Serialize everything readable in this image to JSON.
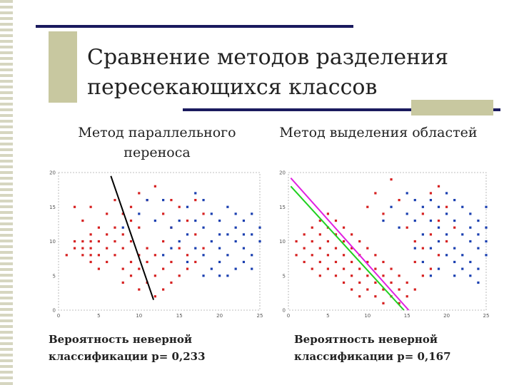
{
  "slide": {
    "title": "Сравнение методов разделения пересекающихся классов",
    "accent_color": "#1a1a5e",
    "deco_color": "#c8c8a0"
  },
  "panels": [
    {
      "subtitle": "Метод параллельного переноса",
      "caption": "Вероятность неверной классификации p= 0,233"
    },
    {
      "subtitle": "Метод выделения областей",
      "caption": "Вероятность неверной классификации p= 0,167"
    }
  ],
  "chart_data": [
    {
      "type": "scatter",
      "title": "Метод параллельного переноса",
      "xlim": [
        0,
        25
      ],
      "ylim": [
        0,
        20
      ],
      "xticks": [
        0,
        5,
        10,
        15,
        20,
        25
      ],
      "yticks": [
        0,
        5,
        10,
        15,
        20
      ],
      "grid": false,
      "series": [
        {
          "color": "#d62020",
          "points": [
            [
              1,
              8
            ],
            [
              2,
              9
            ],
            [
              2,
              10
            ],
            [
              3,
              8
            ],
            [
              3,
              9
            ],
            [
              3,
              10
            ],
            [
              4,
              7
            ],
            [
              4,
              8
            ],
            [
              4,
              9
            ],
            [
              4,
              10
            ],
            [
              4,
              11
            ],
            [
              5,
              6
            ],
            [
              5,
              8
            ],
            [
              5,
              10
            ],
            [
              5,
              12
            ],
            [
              6,
              7
            ],
            [
              6,
              9
            ],
            [
              6,
              11
            ],
            [
              6,
              14
            ],
            [
              7,
              8
            ],
            [
              7,
              10
            ],
            [
              7,
              12
            ],
            [
              7,
              16
            ],
            [
              8,
              4
            ],
            [
              8,
              6
            ],
            [
              8,
              9
            ],
            [
              8,
              11
            ],
            [
              8,
              14
            ],
            [
              9,
              5
            ],
            [
              9,
              7
            ],
            [
              9,
              10
            ],
            [
              9,
              13
            ],
            [
              9,
              15
            ],
            [
              10,
              3
            ],
            [
              10,
              6
            ],
            [
              10,
              8
            ],
            [
              10,
              12
            ],
            [
              10,
              17
            ],
            [
              11,
              4
            ],
            [
              11,
              7
            ],
            [
              11,
              9
            ],
            [
              11,
              16
            ],
            [
              12,
              2
            ],
            [
              12,
              5
            ],
            [
              12,
              8
            ],
            [
              12,
              18
            ],
            [
              13,
              3
            ],
            [
              13,
              6
            ],
            [
              13,
              10
            ],
            [
              13,
              14
            ],
            [
              14,
              4
            ],
            [
              14,
              7
            ],
            [
              14,
              12
            ],
            [
              14,
              16
            ],
            [
              15,
              5
            ],
            [
              15,
              9
            ],
            [
              15,
              15
            ],
            [
              16,
              6
            ],
            [
              16,
              8
            ],
            [
              16,
              13
            ],
            [
              17,
              7
            ],
            [
              17,
              11
            ],
            [
              17,
              16
            ],
            [
              18,
              9
            ],
            [
              18,
              14
            ],
            [
              4,
              15
            ],
            [
              3,
              13
            ],
            [
              2,
              15
            ]
          ]
        },
        {
          "color": "#1a3fb0",
          "points": [
            [
              8,
              12
            ],
            [
              10,
              14
            ],
            [
              11,
              16
            ],
            [
              12,
              13
            ],
            [
              13,
              16
            ],
            [
              14,
              12
            ],
            [
              15,
              10
            ],
            [
              15,
              13
            ],
            [
              16,
              11
            ],
            [
              16,
              15
            ],
            [
              17,
              9
            ],
            [
              17,
              13
            ],
            [
              17,
              17
            ],
            [
              18,
              8
            ],
            [
              18,
              12
            ],
            [
              18,
              16
            ],
            [
              19,
              10
            ],
            [
              19,
              14
            ],
            [
              20,
              7
            ],
            [
              20,
              9
            ],
            [
              20,
              13
            ],
            [
              21,
              8
            ],
            [
              21,
              11
            ],
            [
              21,
              15
            ],
            [
              22,
              6
            ],
            [
              22,
              10
            ],
            [
              22,
              12
            ],
            [
              23,
              7
            ],
            [
              23,
              9
            ],
            [
              23,
              13
            ],
            [
              24,
              8
            ],
            [
              24,
              11
            ],
            [
              24,
              14
            ],
            [
              25,
              10
            ],
            [
              25,
              12
            ],
            [
              19,
              6
            ],
            [
              20,
              11
            ],
            [
              22,
              14
            ],
            [
              21,
              5
            ],
            [
              23,
              11
            ],
            [
              24,
              6
            ],
            [
              14,
              9
            ],
            [
              13,
              8
            ],
            [
              16,
              7
            ],
            [
              18,
              5
            ],
            [
              20,
              5
            ]
          ]
        }
      ],
      "lines": [
        {
          "color": "#000000",
          "x": [
            6.5,
            11.8
          ],
          "y": [
            19.5,
            1.5
          ]
        }
      ]
    },
    {
      "type": "scatter",
      "title": "Метод выделения областей",
      "xlim": [
        0,
        25
      ],
      "ylim": [
        0,
        20
      ],
      "xticks": [
        0,
        5,
        10,
        15,
        20,
        25
      ],
      "yticks": [
        0,
        5,
        10,
        15,
        20
      ],
      "grid": false,
      "series": [
        {
          "color": "#d62020",
          "points": [
            [
              1,
              8
            ],
            [
              1,
              10
            ],
            [
              2,
              7
            ],
            [
              2,
              9
            ],
            [
              2,
              11
            ],
            [
              3,
              6
            ],
            [
              3,
              8
            ],
            [
              3,
              10
            ],
            [
              3,
              12
            ],
            [
              4,
              5
            ],
            [
              4,
              7
            ],
            [
              4,
              9
            ],
            [
              4,
              11
            ],
            [
              4,
              13
            ],
            [
              5,
              6
            ],
            [
              5,
              8
            ],
            [
              5,
              10
            ],
            [
              5,
              12
            ],
            [
              5,
              14
            ],
            [
              6,
              5
            ],
            [
              6,
              7
            ],
            [
              6,
              9
            ],
            [
              6,
              11
            ],
            [
              6,
              13
            ],
            [
              7,
              4
            ],
            [
              7,
              6
            ],
            [
              7,
              8
            ],
            [
              7,
              10
            ],
            [
              7,
              12
            ],
            [
              8,
              3
            ],
            [
              8,
              5
            ],
            [
              8,
              7
            ],
            [
              8,
              9
            ],
            [
              8,
              11
            ],
            [
              9,
              2
            ],
            [
              9,
              4
            ],
            [
              9,
              6
            ],
            [
              9,
              8
            ],
            [
              9,
              10
            ],
            [
              10,
              3
            ],
            [
              10,
              5
            ],
            [
              10,
              7
            ],
            [
              10,
              9
            ],
            [
              11,
              2
            ],
            [
              11,
              4
            ],
            [
              11,
              6
            ],
            [
              11,
              8
            ],
            [
              12,
              1
            ],
            [
              12,
              3
            ],
            [
              12,
              5
            ],
            [
              12,
              7
            ],
            [
              13,
              2
            ],
            [
              13,
              4
            ],
            [
              13,
              6
            ],
            [
              14,
              1
            ],
            [
              14,
              3
            ],
            [
              14,
              5
            ],
            [
              15,
              2
            ],
            [
              15,
              4
            ],
            [
              16,
              3
            ],
            [
              16,
              7
            ],
            [
              17,
              5
            ],
            [
              17,
              9
            ],
            [
              18,
              6
            ],
            [
              18,
              11
            ],
            [
              19,
              8
            ],
            [
              19,
              13
            ],
            [
              20,
              10
            ],
            [
              20,
              15
            ],
            [
              21,
              12
            ],
            [
              11,
              17
            ],
            [
              10,
              15
            ],
            [
              13,
              19
            ],
            [
              14,
              16
            ],
            [
              12,
              14
            ],
            [
              15,
              12
            ],
            [
              16,
              10
            ],
            [
              17,
              14
            ],
            [
              18,
              17
            ],
            [
              19,
              18
            ]
          ]
        },
        {
          "color": "#1a3fb0",
          "points": [
            [
              12,
              13
            ],
            [
              13,
              15
            ],
            [
              14,
              12
            ],
            [
              15,
              14
            ],
            [
              15,
              17
            ],
            [
              16,
              13
            ],
            [
              16,
              16
            ],
            [
              17,
              11
            ],
            [
              17,
              15
            ],
            [
              18,
              9
            ],
            [
              18,
              13
            ],
            [
              18,
              16
            ],
            [
              19,
              10
            ],
            [
              19,
              12
            ],
            [
              19,
              15
            ],
            [
              20,
              8
            ],
            [
              20,
              11
            ],
            [
              20,
              14
            ],
            [
              20,
              17
            ],
            [
              21,
              7
            ],
            [
              21,
              9
            ],
            [
              21,
              13
            ],
            [
              21,
              16
            ],
            [
              22,
              6
            ],
            [
              22,
              8
            ],
            [
              22,
              11
            ],
            [
              22,
              15
            ],
            [
              23,
              7
            ],
            [
              23,
              10
            ],
            [
              23,
              12
            ],
            [
              23,
              14
            ],
            [
              24,
              6
            ],
            [
              24,
              9
            ],
            [
              24,
              11
            ],
            [
              24,
              13
            ],
            [
              25,
              8
            ],
            [
              25,
              10
            ],
            [
              25,
              12
            ],
            [
              25,
              15
            ],
            [
              16,
              9
            ],
            [
              17,
              7
            ],
            [
              18,
              5
            ],
            [
              19,
              6
            ],
            [
              21,
              5
            ],
            [
              23,
              5
            ],
            [
              24,
              4
            ]
          ]
        }
      ],
      "lines": [
        {
          "color": "#e020e0",
          "x": [
            0.3,
            15.2
          ],
          "y": [
            19.2,
            0
          ]
        },
        {
          "color": "#20d020",
          "x": [
            0.3,
            14.6
          ],
          "y": [
            18.0,
            0
          ]
        }
      ]
    }
  ]
}
